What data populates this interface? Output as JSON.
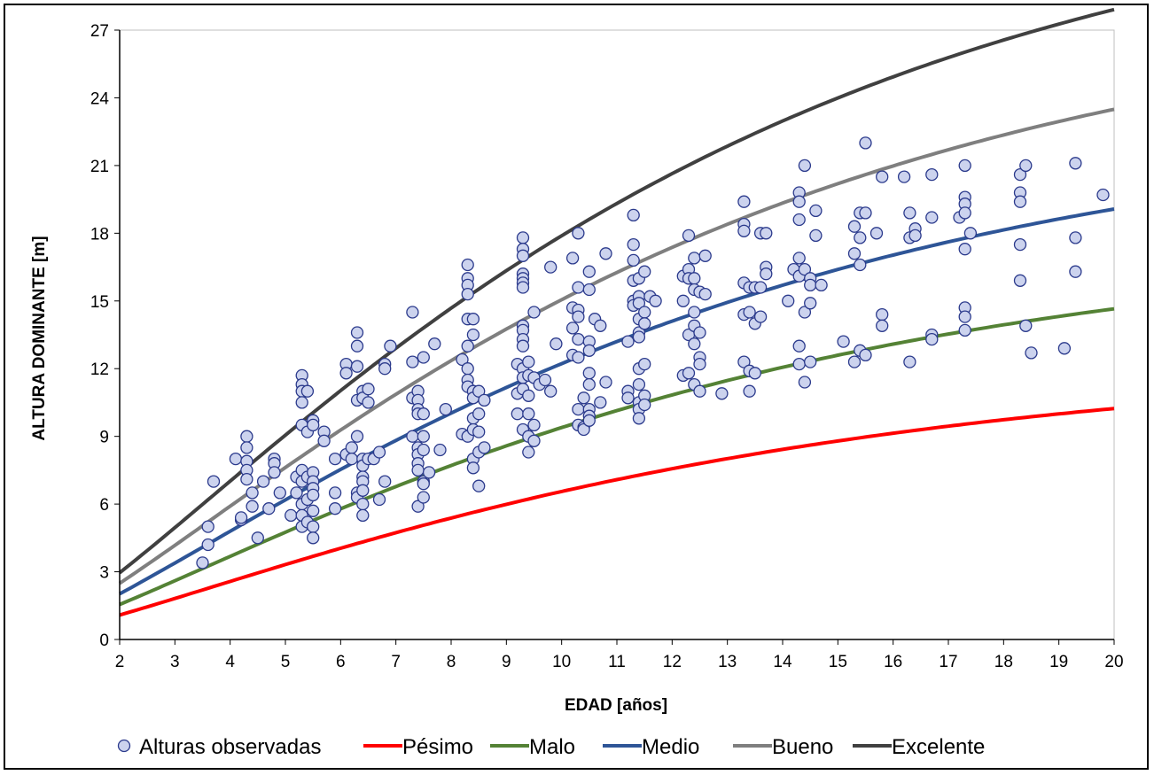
{
  "chart_data": {
    "type": "scatter",
    "xlabel": "EDAD [años]",
    "ylabel": "ALTURA DOMINANTE [m]",
    "xlim": [
      2,
      20
    ],
    "ylim": [
      0,
      27
    ],
    "x_ticks": [
      2,
      3,
      4,
      5,
      6,
      7,
      8,
      9,
      10,
      11,
      12,
      13,
      14,
      15,
      16,
      17,
      18,
      19,
      20
    ],
    "y_ticks": [
      0,
      3,
      6,
      9,
      12,
      15,
      18,
      21,
      24,
      27
    ],
    "grid": false,
    "legend_position": "bottom",
    "observed": {
      "name": "Alturas observadas",
      "marker_fill": "#ccd3ee",
      "marker_edge": "#2b3a8c",
      "points": [
        [
          3.5,
          3.4
        ],
        [
          3.6,
          4.2
        ],
        [
          3.6,
          5.0
        ],
        [
          3.7,
          7.0
        ],
        [
          4.1,
          8.0
        ],
        [
          4.2,
          5.3
        ],
        [
          4.2,
          5.4
        ],
        [
          4.3,
          9.0
        ],
        [
          4.3,
          8.5
        ],
        [
          4.3,
          7.9
        ],
        [
          4.3,
          7.5
        ],
        [
          4.3,
          7.1
        ],
        [
          4.4,
          6.5
        ],
        [
          4.4,
          5.9
        ],
        [
          4.5,
          4.5
        ],
        [
          4.6,
          7.0
        ],
        [
          4.7,
          5.8
        ],
        [
          4.8,
          8.0
        ],
        [
          4.8,
          7.8
        ],
        [
          4.8,
          7.4
        ],
        [
          4.9,
          6.5
        ],
        [
          5.1,
          5.5
        ],
        [
          5.2,
          7.2
        ],
        [
          5.2,
          6.5
        ],
        [
          5.3,
          11.7
        ],
        [
          5.3,
          11.3
        ],
        [
          5.3,
          11.0
        ],
        [
          5.3,
          10.5
        ],
        [
          5.3,
          9.5
        ],
        [
          5.3,
          7.5
        ],
        [
          5.3,
          7.0
        ],
        [
          5.3,
          6.0
        ],
        [
          5.3,
          5.5
        ],
        [
          5.3,
          5.0
        ],
        [
          5.4,
          11.0
        ],
        [
          5.4,
          9.2
        ],
        [
          5.4,
          7.2
        ],
        [
          5.4,
          6.2
        ],
        [
          5.4,
          5.2
        ],
        [
          5.5,
          9.7
        ],
        [
          5.5,
          9.5
        ],
        [
          5.5,
          7.4
        ],
        [
          5.5,
          7.0
        ],
        [
          5.5,
          6.7
        ],
        [
          5.5,
          6.4
        ],
        [
          5.5,
          5.7
        ],
        [
          5.5,
          5.0
        ],
        [
          5.5,
          4.5
        ],
        [
          5.7,
          9.2
        ],
        [
          5.7,
          8.8
        ],
        [
          5.9,
          8.0
        ],
        [
          5.9,
          6.5
        ],
        [
          5.9,
          5.8
        ],
        [
          6.1,
          12.2
        ],
        [
          6.1,
          11.8
        ],
        [
          6.1,
          8.2
        ],
        [
          6.2,
          8.5
        ],
        [
          6.2,
          8.0
        ],
        [
          6.3,
          13.6
        ],
        [
          6.3,
          13.0
        ],
        [
          6.3,
          12.1
        ],
        [
          6.3,
          10.6
        ],
        [
          6.3,
          9.0
        ],
        [
          6.3,
          6.5
        ],
        [
          6.3,
          6.3
        ],
        [
          6.4,
          11.0
        ],
        [
          6.4,
          10.7
        ],
        [
          6.4,
          8.0
        ],
        [
          6.4,
          7.7
        ],
        [
          6.4,
          7.2
        ],
        [
          6.4,
          7.0
        ],
        [
          6.4,
          6.6
        ],
        [
          6.4,
          6.0
        ],
        [
          6.4,
          5.5
        ],
        [
          6.5,
          11.1
        ],
        [
          6.5,
          10.5
        ],
        [
          6.5,
          8.0
        ],
        [
          6.6,
          8.0
        ],
        [
          6.7,
          8.3
        ],
        [
          6.7,
          6.2
        ],
        [
          6.8,
          12.2
        ],
        [
          6.8,
          12.0
        ],
        [
          6.8,
          7.0
        ],
        [
          6.9,
          13.0
        ],
        [
          7.3,
          14.5
        ],
        [
          7.3,
          12.3
        ],
        [
          7.3,
          10.7
        ],
        [
          7.3,
          9.0
        ],
        [
          7.4,
          11.0
        ],
        [
          7.4,
          10.6
        ],
        [
          7.4,
          10.2
        ],
        [
          7.4,
          10.0
        ],
        [
          7.4,
          8.5
        ],
        [
          7.4,
          8.2
        ],
        [
          7.4,
          7.8
        ],
        [
          7.4,
          7.5
        ],
        [
          7.4,
          5.9
        ],
        [
          7.5,
          12.5
        ],
        [
          7.5,
          10.0
        ],
        [
          7.5,
          9.0
        ],
        [
          7.5,
          8.4
        ],
        [
          7.5,
          7.0
        ],
        [
          7.5,
          6.9
        ],
        [
          7.5,
          6.3
        ],
        [
          7.6,
          7.4
        ],
        [
          7.7,
          13.1
        ],
        [
          7.8,
          8.4
        ],
        [
          7.9,
          10.2
        ],
        [
          8.2,
          12.4
        ],
        [
          8.2,
          9.1
        ],
        [
          8.3,
          16.6
        ],
        [
          8.3,
          16.0
        ],
        [
          8.3,
          15.7
        ],
        [
          8.3,
          15.3
        ],
        [
          8.3,
          14.2
        ],
        [
          8.3,
          13.0
        ],
        [
          8.3,
          12.0
        ],
        [
          8.3,
          11.5
        ],
        [
          8.3,
          11.2
        ],
        [
          8.3,
          9.0
        ],
        [
          8.4,
          14.2
        ],
        [
          8.4,
          13.5
        ],
        [
          8.4,
          11.0
        ],
        [
          8.4,
          10.7
        ],
        [
          8.4,
          9.8
        ],
        [
          8.4,
          9.3
        ],
        [
          8.4,
          8.0
        ],
        [
          8.4,
          7.6
        ],
        [
          8.5,
          11.0
        ],
        [
          8.5,
          10.0
        ],
        [
          8.5,
          9.2
        ],
        [
          8.5,
          8.3
        ],
        [
          8.5,
          6.8
        ],
        [
          8.6,
          10.6
        ],
        [
          8.6,
          8.5
        ],
        [
          9.2,
          12.2
        ],
        [
          9.2,
          10.9
        ],
        [
          9.2,
          10.0
        ],
        [
          9.3,
          17.8
        ],
        [
          9.3,
          17.3
        ],
        [
          9.3,
          17.0
        ],
        [
          9.3,
          16.2
        ],
        [
          9.3,
          16.0
        ],
        [
          9.3,
          15.8
        ],
        [
          9.3,
          15.6
        ],
        [
          9.3,
          13.9
        ],
        [
          9.3,
          13.7
        ],
        [
          9.3,
          13.3
        ],
        [
          9.3,
          13.0
        ],
        [
          9.3,
          12.0
        ],
        [
          9.3,
          11.6
        ],
        [
          9.3,
          11.1
        ],
        [
          9.3,
          9.3
        ],
        [
          9.4,
          12.3
        ],
        [
          9.4,
          11.7
        ],
        [
          9.4,
          10.8
        ],
        [
          9.4,
          10.0
        ],
        [
          9.4,
          9.0
        ],
        [
          9.4,
          8.3
        ],
        [
          9.5,
          14.5
        ],
        [
          9.5,
          11.6
        ],
        [
          9.5,
          9.5
        ],
        [
          9.5,
          8.8
        ],
        [
          9.6,
          11.3
        ],
        [
          9.7,
          11.5
        ],
        [
          9.8,
          11.0
        ],
        [
          9.8,
          16.5
        ],
        [
          9.9,
          13.1
        ],
        [
          10.2,
          16.9
        ],
        [
          10.2,
          14.7
        ],
        [
          10.2,
          13.8
        ],
        [
          10.2,
          12.6
        ],
        [
          10.3,
          18.0
        ],
        [
          10.3,
          15.6
        ],
        [
          10.3,
          14.6
        ],
        [
          10.3,
          14.3
        ],
        [
          10.3,
          13.3
        ],
        [
          10.3,
          12.5
        ],
        [
          10.3,
          10.2
        ],
        [
          10.3,
          9.5
        ],
        [
          10.4,
          10.7
        ],
        [
          10.4,
          9.4
        ],
        [
          10.4,
          9.3
        ],
        [
          10.5,
          16.3
        ],
        [
          10.5,
          15.5
        ],
        [
          10.5,
          13.2
        ],
        [
          10.5,
          12.8
        ],
        [
          10.5,
          11.8
        ],
        [
          10.5,
          11.3
        ],
        [
          10.5,
          10.2
        ],
        [
          10.5,
          9.9
        ],
        [
          10.5,
          9.7
        ],
        [
          10.6,
          14.2
        ],
        [
          10.7,
          13.9
        ],
        [
          10.7,
          10.5
        ],
        [
          10.8,
          17.1
        ],
        [
          10.8,
          11.4
        ],
        [
          11.2,
          13.2
        ],
        [
          11.2,
          11.0
        ],
        [
          11.2,
          10.7
        ],
        [
          11.3,
          18.8
        ],
        [
          11.3,
          17.5
        ],
        [
          11.3,
          16.8
        ],
        [
          11.3,
          15.9
        ],
        [
          11.3,
          15.0
        ],
        [
          11.3,
          14.8
        ],
        [
          11.4,
          16.0
        ],
        [
          11.4,
          15.2
        ],
        [
          11.4,
          14.9
        ],
        [
          11.4,
          14.2
        ],
        [
          11.4,
          13.6
        ],
        [
          11.4,
          13.4
        ],
        [
          11.4,
          12.0
        ],
        [
          11.4,
          11.3
        ],
        [
          11.4,
          10.5
        ],
        [
          11.4,
          10.2
        ],
        [
          11.4,
          9.8
        ],
        [
          11.5,
          16.3
        ],
        [
          11.5,
          14.5
        ],
        [
          11.5,
          14.0
        ],
        [
          11.5,
          12.2
        ],
        [
          11.5,
          10.8
        ],
        [
          11.5,
          10.4
        ],
        [
          11.6,
          15.2
        ],
        [
          11.7,
          15.0
        ],
        [
          12.2,
          16.1
        ],
        [
          12.2,
          15.0
        ],
        [
          12.2,
          11.7
        ],
        [
          12.3,
          17.9
        ],
        [
          12.3,
          16.4
        ],
        [
          12.3,
          16.0
        ],
        [
          12.3,
          13.5
        ],
        [
          12.3,
          11.8
        ],
        [
          12.4,
          16.9
        ],
        [
          12.4,
          16.0
        ],
        [
          12.4,
          15.5
        ],
        [
          12.4,
          14.5
        ],
        [
          12.4,
          13.9
        ],
        [
          12.4,
          13.1
        ],
        [
          12.4,
          11.3
        ],
        [
          12.5,
          15.4
        ],
        [
          12.5,
          13.6
        ],
        [
          12.5,
          12.5
        ],
        [
          12.5,
          12.2
        ],
        [
          12.5,
          11.0
        ],
        [
          12.6,
          15.3
        ],
        [
          12.6,
          17.0
        ],
        [
          12.9,
          10.9
        ],
        [
          13.3,
          19.4
        ],
        [
          13.3,
          18.4
        ],
        [
          13.3,
          18.1
        ],
        [
          13.3,
          15.8
        ],
        [
          13.3,
          14.4
        ],
        [
          13.3,
          12.3
        ],
        [
          13.4,
          15.6
        ],
        [
          13.4,
          14.5
        ],
        [
          13.4,
          11.9
        ],
        [
          13.4,
          11.0
        ],
        [
          13.5,
          15.6
        ],
        [
          13.5,
          14.0
        ],
        [
          13.5,
          11.8
        ],
        [
          13.6,
          18.0
        ],
        [
          13.6,
          15.6
        ],
        [
          13.6,
          14.3
        ],
        [
          13.7,
          16.5
        ],
        [
          13.7,
          16.2
        ],
        [
          13.7,
          18.0
        ],
        [
          14.1,
          15.0
        ],
        [
          14.2,
          16.4
        ],
        [
          14.3,
          19.8
        ],
        [
          14.3,
          19.4
        ],
        [
          14.3,
          18.6
        ],
        [
          14.3,
          16.9
        ],
        [
          14.3,
          16.1
        ],
        [
          14.3,
          13.0
        ],
        [
          14.3,
          12.2
        ],
        [
          14.4,
          21.0
        ],
        [
          14.4,
          16.4
        ],
        [
          14.4,
          14.5
        ],
        [
          14.4,
          11.4
        ],
        [
          14.5,
          16.0
        ],
        [
          14.5,
          15.7
        ],
        [
          14.5,
          14.9
        ],
        [
          14.5,
          12.3
        ],
        [
          14.6,
          19.0
        ],
        [
          14.6,
          17.9
        ],
        [
          14.7,
          15.7
        ],
        [
          15.1,
          13.2
        ],
        [
          15.3,
          18.3
        ],
        [
          15.3,
          17.1
        ],
        [
          15.3,
          12.3
        ],
        [
          15.4,
          18.9
        ],
        [
          15.4,
          17.8
        ],
        [
          15.4,
          16.6
        ],
        [
          15.4,
          12.8
        ],
        [
          15.5,
          22.0
        ],
        [
          15.5,
          18.9
        ],
        [
          15.5,
          12.6
        ],
        [
          15.7,
          18.0
        ],
        [
          15.8,
          20.5
        ],
        [
          15.8,
          14.4
        ],
        [
          15.8,
          13.9
        ],
        [
          16.2,
          20.5
        ],
        [
          16.3,
          18.9
        ],
        [
          16.3,
          17.8
        ],
        [
          16.3,
          12.3
        ],
        [
          16.4,
          18.2
        ],
        [
          16.4,
          17.9
        ],
        [
          16.7,
          20.6
        ],
        [
          16.7,
          18.7
        ],
        [
          16.7,
          13.5
        ],
        [
          16.7,
          13.3
        ],
        [
          17.2,
          18.7
        ],
        [
          17.3,
          21.0
        ],
        [
          17.3,
          19.6
        ],
        [
          17.3,
          19.3
        ],
        [
          17.3,
          18.9
        ],
        [
          17.3,
          17.3
        ],
        [
          17.3,
          14.7
        ],
        [
          17.3,
          14.3
        ],
        [
          17.3,
          13.7
        ],
        [
          17.4,
          18.0
        ],
        [
          18.3,
          20.6
        ],
        [
          18.3,
          19.8
        ],
        [
          18.3,
          19.4
        ],
        [
          18.3,
          17.5
        ],
        [
          18.3,
          15.9
        ],
        [
          18.4,
          21.0
        ],
        [
          18.4,
          13.9
        ],
        [
          18.5,
          12.7
        ],
        [
          19.1,
          12.9
        ],
        [
          19.3,
          21.1
        ],
        [
          19.3,
          17.8
        ],
        [
          19.3,
          16.3
        ],
        [
          19.8,
          19.7
        ]
      ]
    },
    "series": [
      {
        "name": "Pésimo",
        "color": "#ff0000",
        "asymptote": 12.5,
        "rate": 0.1024
      },
      {
        "name": "Malo",
        "color": "#548235",
        "asymptote": 17.9,
        "rate": 0.1024
      },
      {
        "name": "Medio",
        "color": "#2e5597",
        "asymptote": 23.3,
        "rate": 0.1024
      },
      {
        "name": "Bueno",
        "color": "#7f7f7f",
        "asymptote": 28.7,
        "rate": 0.1024
      },
      {
        "name": "Excelente",
        "color": "#404040",
        "asymptote": 34.1,
        "rate": 0.1024
      }
    ],
    "curve_shape": 1.45
  }
}
